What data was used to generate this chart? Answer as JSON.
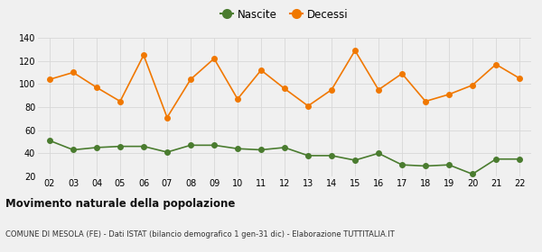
{
  "years": [
    2,
    3,
    4,
    5,
    6,
    7,
    8,
    9,
    10,
    11,
    12,
    13,
    14,
    15,
    16,
    17,
    18,
    19,
    20,
    21,
    22
  ],
  "nascite": [
    51,
    43,
    45,
    46,
    46,
    41,
    47,
    47,
    44,
    43,
    45,
    38,
    38,
    34,
    40,
    30,
    29,
    30,
    22,
    35,
    35
  ],
  "decessi": [
    104,
    110,
    97,
    85,
    125,
    71,
    104,
    122,
    87,
    112,
    96,
    81,
    95,
    129,
    95,
    109,
    85,
    91,
    99,
    117,
    105
  ],
  "nascite_color": "#4a7c2f",
  "decessi_color": "#f07800",
  "background_color": "#f0f0f0",
  "grid_color": "#d8d8d8",
  "title": "Movimento naturale della popolazione",
  "subtitle": "COMUNE DI MESOLA (FE) - Dati ISTAT (bilancio demografico 1 gen-31 dic) - Elaborazione TUTTITALIA.IT",
  "ylim": [
    20,
    140
  ],
  "yticks": [
    20,
    40,
    60,
    80,
    100,
    120,
    140
  ],
  "legend_nascite": "Nascite",
  "legend_decessi": "Decessi",
  "marker_size": 4,
  "line_width": 1.2
}
